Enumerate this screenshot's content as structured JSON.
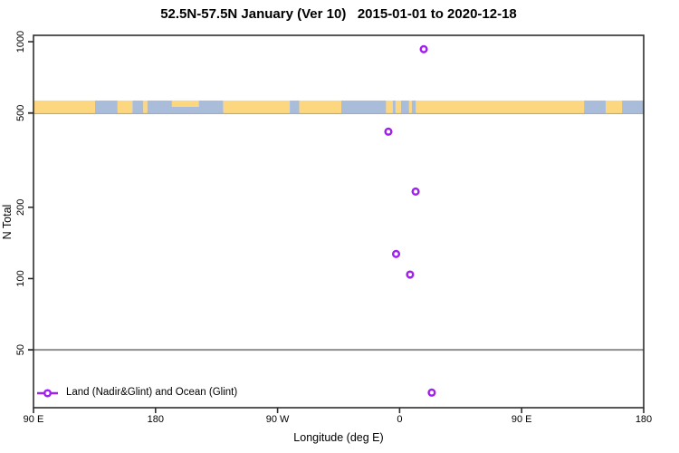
{
  "title": "52.5N-57.5N January (Ver 10)   2015-01-01 to 2020-12-18",
  "chart_data": {
    "type": "scatter",
    "title": "52.5N-57.5N January (Ver 10)   2015-01-01 to 2020-12-18",
    "xlabel": "Longitude (deg E)",
    "ylabel": "N Total",
    "x_range": [
      90,
      540
    ],
    "x_ticks": [
      {
        "pos": 90,
        "label": "90 E"
      },
      {
        "pos": 180,
        "label": "180"
      },
      {
        "pos": 270,
        "label": "90 W"
      },
      {
        "pos": 360,
        "label": "0"
      },
      {
        "pos": 450,
        "label": "90 E"
      },
      {
        "pos": 540,
        "label": "180"
      }
    ],
    "y_scale": "log",
    "y_range": [
      28.5,
      1064
    ],
    "y_ticks": [
      {
        "value": 50,
        "label": "50"
      },
      {
        "value": 100,
        "label": "100"
      },
      {
        "value": 200,
        "label": "200"
      },
      {
        "value": 500,
        "label": "500"
      },
      {
        "value": 1000,
        "label": "1000"
      }
    ],
    "gridlines_y": [
      50,
      500
    ],
    "grid_color": "#8E8E8E",
    "axis_color": "#2E2E2E",
    "marker_color": "#A020F0",
    "points": [
      {
        "axis_x": 377.8,
        "lon_deg_e": 17.8,
        "n_total": 930
      },
      {
        "axis_x": 351.7,
        "lon_deg_e": -8.3,
        "n_total": 417
      },
      {
        "axis_x": 371.8,
        "lon_deg_e": 11.8,
        "n_total": 233
      },
      {
        "axis_x": 357.4,
        "lon_deg_e": -2.6,
        "n_total": 127
      },
      {
        "axis_x": 367.7,
        "lon_deg_e": 7.7,
        "n_total": 104
      },
      {
        "axis_x": 383.7,
        "lon_deg_e": 23.7,
        "n_total": 33
      }
    ],
    "legend": {
      "label": "Land (Nadir&Glint) and Ocean (Glint)",
      "position": "bottom-left"
    },
    "map_band": {
      "description": "world land/ocean strip at 52.5N-57.5N drawn across the 500 level",
      "land_color": "#FCD77F",
      "ocean_color": "#A9BDDB",
      "center_value": 500,
      "segments": [
        [
          90,
          135.4,
          "land"
        ],
        [
          135.4,
          152,
          "ocean"
        ],
        [
          152,
          163,
          "land"
        ],
        [
          163,
          171,
          "ocean"
        ],
        [
          171,
          174,
          "land"
        ],
        [
          174,
          230,
          "ocean"
        ],
        [
          192,
          212,
          "land-top"
        ],
        [
          230,
          279,
          "land"
        ],
        [
          279,
          286,
          "ocean"
        ],
        [
          286,
          317,
          "land"
        ],
        [
          317,
          350,
          "ocean"
        ],
        [
          350,
          355,
          "land"
        ],
        [
          355,
          357,
          "ocean"
        ],
        [
          357,
          361,
          "land"
        ],
        [
          361,
          367,
          "ocean"
        ],
        [
          367,
          369,
          "land"
        ],
        [
          369,
          372,
          "ocean"
        ],
        [
          372,
          496,
          "land"
        ],
        [
          496,
          512,
          "ocean"
        ],
        [
          512,
          524,
          "land"
        ],
        [
          524,
          540,
          "ocean"
        ]
      ]
    }
  }
}
